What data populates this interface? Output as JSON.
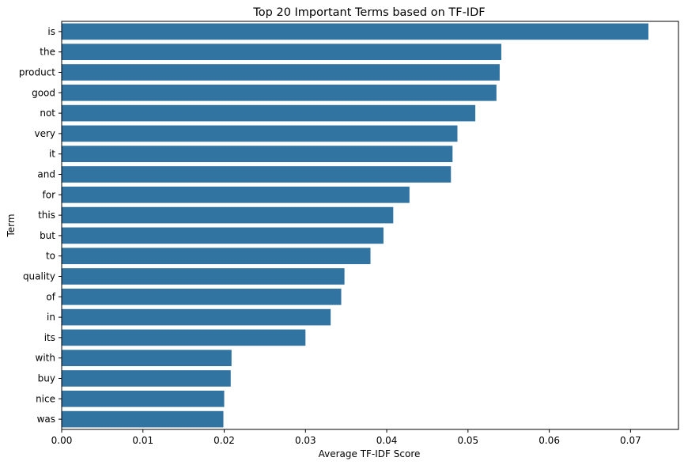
{
  "chart_data": {
    "type": "bar",
    "orientation": "horizontal",
    "title": "Top 20 Important Terms based on TF-IDF",
    "xlabel": "Average TF-IDF Score",
    "ylabel": "Term",
    "categories": [
      "is",
      "the",
      "product",
      "good",
      "not",
      "very",
      "it",
      "and",
      "for",
      "this",
      "but",
      "to",
      "quality",
      "of",
      "in",
      "its",
      "with",
      "buy",
      "nice",
      "was"
    ],
    "values": [
      0.0722,
      0.0541,
      0.0539,
      0.0535,
      0.0509,
      0.0487,
      0.0481,
      0.0479,
      0.0428,
      0.0408,
      0.0396,
      0.038,
      0.0348,
      0.0344,
      0.0331,
      0.03,
      0.0209,
      0.0208,
      0.02,
      0.0199
    ],
    "xlim": [
      0,
      0.0759
    ],
    "xticks": [
      "0.00",
      "0.01",
      "0.02",
      "0.03",
      "0.04",
      "0.05",
      "0.06",
      "0.07"
    ],
    "bar_color": "#3274a1",
    "grid": false
  }
}
